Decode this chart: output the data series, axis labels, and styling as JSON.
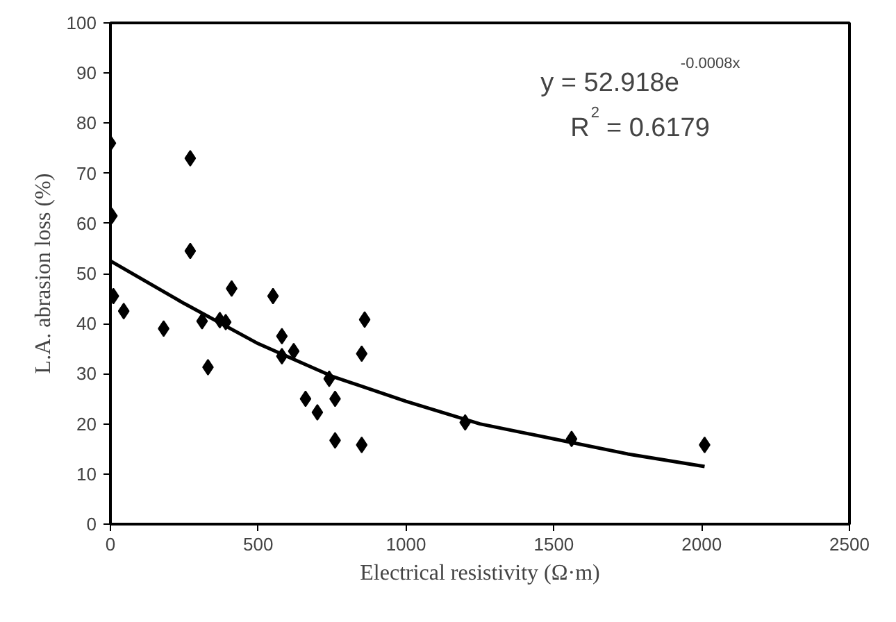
{
  "chart_data": {
    "type": "scatter",
    "xlabel": "Electrical resistivity (Ω·m)",
    "ylabel": "L.A. abrasion loss (%)",
    "xlim": [
      0,
      2500
    ],
    "ylim": [
      0,
      100
    ],
    "xticks": [
      0,
      500,
      1000,
      1500,
      2000,
      2500
    ],
    "yticks": [
      0,
      10,
      20,
      30,
      40,
      50,
      60,
      70,
      80,
      90,
      100
    ],
    "grid": false,
    "series": [
      {
        "marker": "diamond",
        "color": "#000000",
        "x": [
          0,
          5,
          10,
          45,
          180,
          270,
          270,
          310,
          330,
          370,
          390,
          410,
          550,
          580,
          580,
          620,
          660,
          700,
          740,
          760,
          760,
          850,
          850,
          860,
          1200,
          1560,
          2010
        ],
        "values": [
          76,
          61.5,
          45.5,
          42.5,
          39,
          73,
          54.5,
          40.5,
          31.3,
          40.7,
          40.3,
          47,
          45.5,
          37.5,
          33.5,
          34.5,
          25,
          22.3,
          29,
          25,
          16.7,
          34,
          15.8,
          40.8,
          20.3,
          17,
          15.8
        ]
      },
      {
        "type": "line",
        "color": "#000000",
        "line_style": "solid",
        "x": [
          0,
          250,
          500,
          750,
          1000,
          1250,
          1500,
          1750,
          2010
        ],
        "values": [
          52.5,
          44,
          36,
          29.5,
          24.5,
          20,
          17,
          14,
          11.5
        ]
      }
    ],
    "annotations": [
      "y = 52.918e$^{-0.0008x}$",
      "R$^{2}$ = 0.6179"
    ]
  }
}
